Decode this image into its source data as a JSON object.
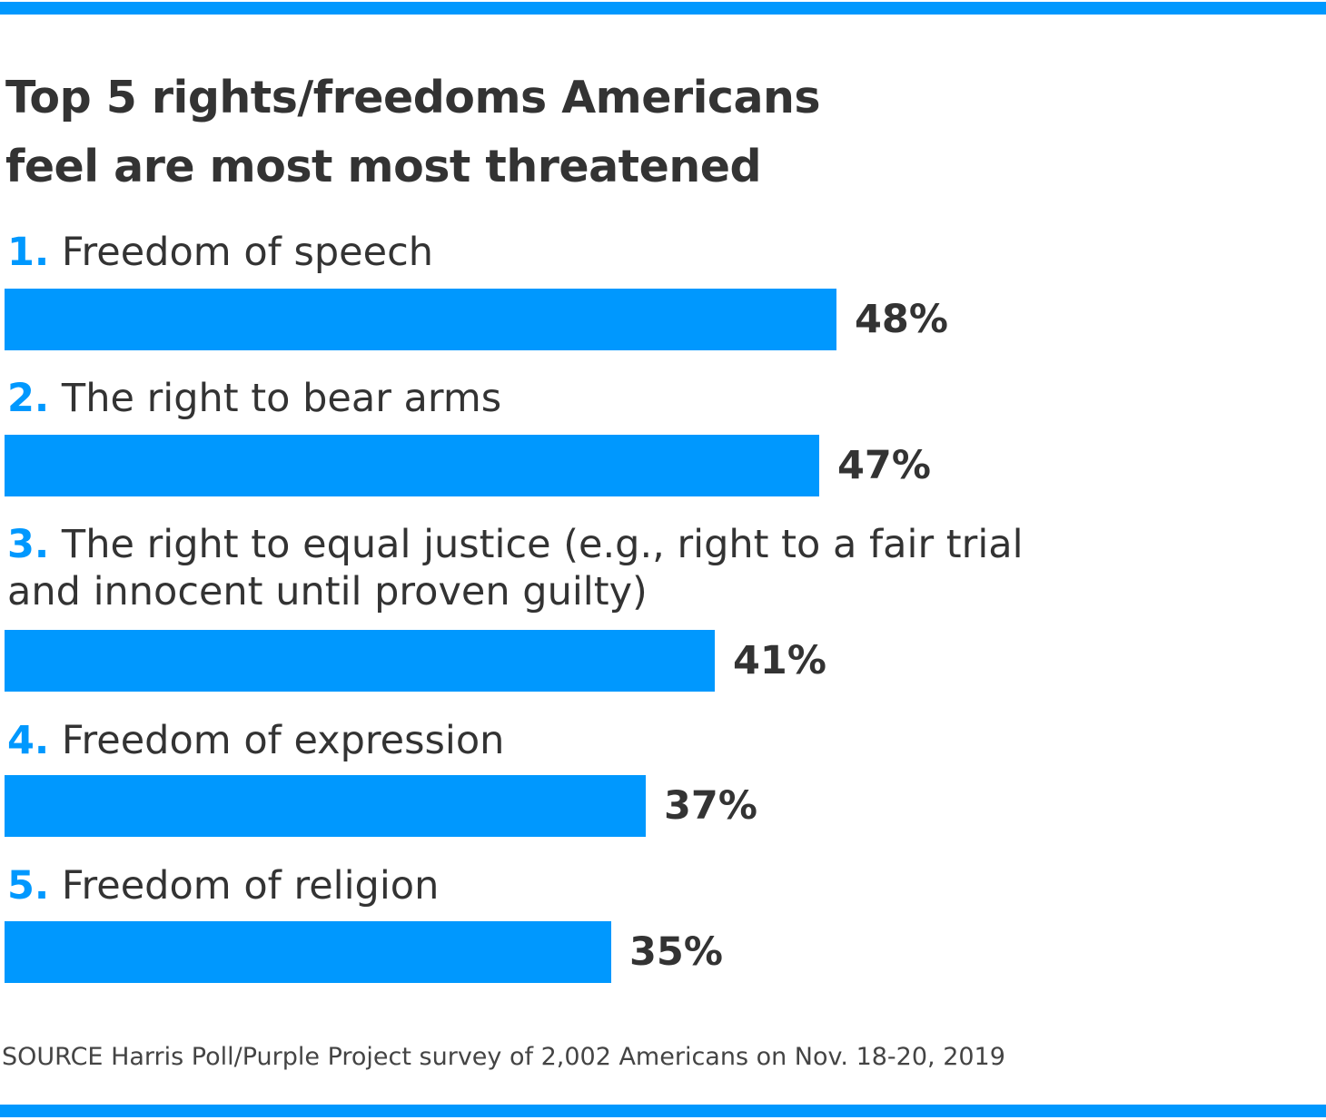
{
  "colors": {
    "accent": "#0098fe",
    "text": "#333333"
  },
  "chart_data": {
    "type": "bar",
    "orientation": "horizontal",
    "title": "Top 5 rights/freedoms Americans feel are most most threatened",
    "title_lines": [
      "Top 5 rights/freedoms Americans",
      "feel are most most threatened"
    ],
    "unit": "%",
    "categories": [
      {
        "rank": "1.",
        "label_lines": [
          "Freedom of speech"
        ],
        "value": 48,
        "display": "48%"
      },
      {
        "rank": "2.",
        "label_lines": [
          "The right to bear arms"
        ],
        "value": 47,
        "display": "47%"
      },
      {
        "rank": "3.",
        "label_lines": [
          "The right to equal justice (e.g., right to a fair trial",
          "and innocent until proven guilty)"
        ],
        "value": 41,
        "display": "41%"
      },
      {
        "rank": "4.",
        "label_lines": [
          "Freedom of expression"
        ],
        "value": 37,
        "display": "37%"
      },
      {
        "rank": "5.",
        "label_lines": [
          "Freedom of religion"
        ],
        "value": 35,
        "display": "35%"
      }
    ],
    "grid": false,
    "legend": "none"
  },
  "source": "SOURCE Harris Poll/Purple Project survey of 2,002 Americans on  Nov. 18-20, 2019"
}
